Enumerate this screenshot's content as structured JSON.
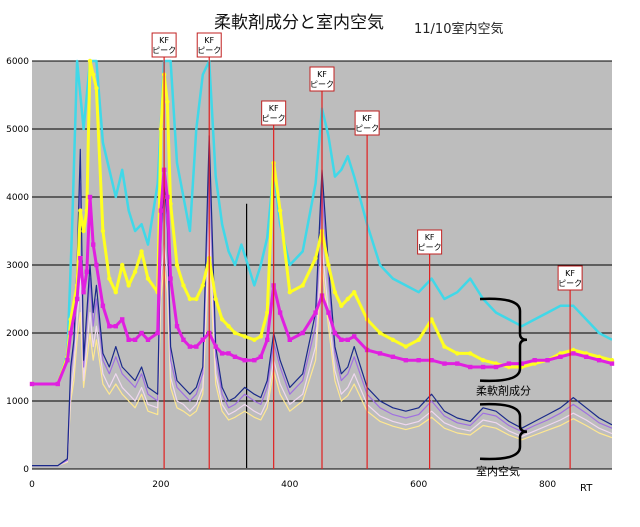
{
  "chart_data": {
    "type": "line",
    "title": "柔軟剤成分と室内空気",
    "subtitle": "11/10室内空気",
    "xlabel": "RT",
    "ylabel": "",
    "xlim": [
      0,
      900
    ],
    "ylim": [
      0,
      6000
    ],
    "x_ticks": [
      0,
      200,
      400,
      600,
      800
    ],
    "y_ticks": [
      0,
      1000,
      2000,
      3000,
      4000,
      5000,
      6000
    ],
    "grid": true,
    "legend": "none",
    "colors": {
      "plot_bg": "#bdbdbd",
      "grid": "#000000",
      "peak_line": "#e02020"
    },
    "kf_peaks": [
      {
        "label": "KF\nピーク",
        "x": 205
      },
      {
        "label": "KF\nピーク",
        "x": 275
      },
      {
        "label": "KF\nピーク",
        "x": 375
      },
      {
        "label": "KF\nピーク",
        "x": 450
      },
      {
        "label": "KF\nピーク",
        "x": 520
      },
      {
        "label": "KF\nピーク",
        "x": 617
      },
      {
        "label": "KF\nピーク",
        "x": 835
      }
    ],
    "marker_line_x": 333,
    "brackets": [
      {
        "label": "柔軟剤成分",
        "y_from": 2500,
        "y_to": 1300
      },
      {
        "label": "室内空気",
        "y_from": 950,
        "y_to": 150
      }
    ],
    "series": [
      {
        "color": "#40d8e8",
        "style": "line",
        "x": [
          0,
          40,
          55,
          62,
          70,
          80,
          90,
          100,
          110,
          130,
          140,
          150,
          160,
          170,
          180,
          195,
          205,
          215,
          225,
          245,
          255,
          265,
          275,
          285,
          295,
          305,
          315,
          325,
          335,
          345,
          355,
          365,
          375,
          385,
          400,
          420,
          440,
          450,
          460,
          470,
          480,
          490,
          500,
          520,
          540,
          560,
          580,
          600,
          620,
          640,
          660,
          680,
          700,
          720,
          740,
          760,
          780,
          800,
          820,
          840,
          860,
          880,
          900
        ],
        "y": [
          1250,
          1250,
          1700,
          3500,
          6000,
          5000,
          6000,
          6000,
          4800,
          4000,
          4400,
          3800,
          3500,
          3600,
          3300,
          4200,
          6000,
          6000,
          4500,
          3500,
          5000,
          5800,
          6000,
          4300,
          3600,
          3200,
          3000,
          3300,
          3000,
          2700,
          3000,
          3400,
          4400,
          3600,
          3000,
          3200,
          4200,
          5300,
          4900,
          4300,
          4400,
          4600,
          4300,
          3600,
          3000,
          2800,
          2700,
          2600,
          2800,
          2500,
          2600,
          2800,
          2500,
          2300,
          2200,
          2100,
          2200,
          2300,
          2400,
          2400,
          2200,
          2000,
          1900
        ]
      },
      {
        "color": "#ffff20",
        "style": "line-dots",
        "x": [
          0,
          40,
          55,
          60,
          70,
          75,
          80,
          85,
          90,
          95,
          100,
          110,
          120,
          130,
          140,
          150,
          160,
          170,
          180,
          195,
          200,
          205,
          210,
          215,
          225,
          235,
          245,
          255,
          265,
          275,
          285,
          295,
          305,
          315,
          330,
          345,
          355,
          365,
          375,
          385,
          400,
          420,
          440,
          450,
          460,
          470,
          480,
          490,
          500,
          520,
          540,
          560,
          580,
          600,
          620,
          640,
          660,
          680,
          700,
          720,
          740,
          760,
          780,
          800,
          820,
          840,
          860,
          880,
          900
        ],
        "y": [
          1250,
          1250,
          1650,
          2200,
          2700,
          3800,
          3500,
          3800,
          6000,
          5800,
          5600,
          3500,
          2800,
          2600,
          3000,
          2700,
          2900,
          3200,
          2800,
          2600,
          5000,
          5800,
          5400,
          3900,
          3000,
          2700,
          2500,
          2500,
          2700,
          3100,
          2500,
          2200,
          2100,
          2000,
          1950,
          1900,
          1950,
          2300,
          4500,
          3800,
          2600,
          2700,
          3100,
          3500,
          3000,
          2600,
          2400,
          2500,
          2600,
          2200,
          2000,
          1900,
          1800,
          1900,
          2200,
          1800,
          1700,
          1700,
          1600,
          1550,
          1500,
          1500,
          1550,
          1600,
          1700,
          1750,
          1700,
          1650,
          1600
        ]
      },
      {
        "color": "#e020e0",
        "style": "line-squares",
        "x": [
          0,
          40,
          55,
          60,
          70,
          75,
          80,
          85,
          90,
          95,
          100,
          110,
          120,
          130,
          140,
          150,
          160,
          170,
          180,
          195,
          200,
          205,
          210,
          215,
          225,
          235,
          245,
          255,
          265,
          275,
          285,
          295,
          305,
          315,
          330,
          345,
          355,
          365,
          375,
          385,
          400,
          420,
          440,
          450,
          460,
          470,
          480,
          490,
          500,
          520,
          540,
          560,
          580,
          600,
          620,
          640,
          660,
          680,
          700,
          720,
          740,
          760,
          780,
          800,
          820,
          840,
          860,
          880,
          900
        ],
        "y": [
          1250,
          1250,
          1600,
          2000,
          2500,
          3100,
          2600,
          2900,
          4000,
          3300,
          3000,
          2400,
          2100,
          2100,
          2200,
          1900,
          1900,
          2000,
          1900,
          2000,
          3800,
          4400,
          4000,
          2800,
          2100,
          1900,
          1800,
          1800,
          1900,
          2000,
          1800,
          1700,
          1700,
          1650,
          1600,
          1600,
          1650,
          1900,
          2700,
          2300,
          1900,
          2000,
          2300,
          2550,
          2300,
          2000,
          1900,
          1900,
          1950,
          1750,
          1700,
          1650,
          1600,
          1600,
          1600,
          1550,
          1550,
          1500,
          1500,
          1500,
          1550,
          1550,
          1600,
          1600,
          1650,
          1700,
          1650,
          1600,
          1550
        ]
      },
      {
        "color": "#1a2a8a",
        "style": "line",
        "x": [
          0,
          40,
          55,
          60,
          65,
          70,
          75,
          80,
          90,
          95,
          100,
          110,
          120,
          130,
          140,
          150,
          160,
          170,
          180,
          195,
          200,
          205,
          210,
          215,
          225,
          235,
          245,
          255,
          265,
          275,
          285,
          295,
          305,
          315,
          330,
          345,
          355,
          365,
          375,
          385,
          400,
          420,
          440,
          450,
          460,
          470,
          480,
          490,
          500,
          520,
          540,
          560,
          580,
          600,
          620,
          640,
          660,
          680,
          700,
          720,
          740,
          760,
          780,
          800,
          820,
          840,
          860,
          880,
          900
        ],
        "y": [
          50,
          50,
          150,
          1500,
          1900,
          3000,
          4700,
          1600,
          3000,
          2300,
          2700,
          1700,
          1500,
          1800,
          1500,
          1400,
          1300,
          1500,
          1200,
          1100,
          3500,
          4200,
          3700,
          1800,
          1300,
          1200,
          1100,
          1200,
          1500,
          4900,
          1800,
          1200,
          1000,
          1050,
          1200,
          1100,
          1050,
          1300,
          2000,
          1600,
          1200,
          1400,
          2300,
          4400,
          3000,
          1800,
          1400,
          1500,
          1800,
          1200,
          1000,
          900,
          850,
          900,
          1100,
          850,
          750,
          700,
          900,
          850,
          700,
          600,
          700,
          800,
          900,
          1050,
          900,
          750,
          650
        ]
      },
      {
        "color": "#a070e0",
        "style": "line",
        "x": [
          0,
          40,
          55,
          60,
          65,
          70,
          75,
          80,
          90,
          95,
          100,
          110,
          120,
          130,
          140,
          150,
          160,
          170,
          180,
          195,
          200,
          205,
          210,
          215,
          225,
          235,
          245,
          255,
          265,
          275,
          285,
          295,
          305,
          315,
          330,
          345,
          355,
          365,
          375,
          385,
          400,
          420,
          440,
          450,
          460,
          470,
          480,
          490,
          500,
          520,
          540,
          560,
          580,
          600,
          620,
          640,
          660,
          680,
          700,
          720,
          740,
          760,
          780,
          800,
          820,
          840,
          860,
          880,
          900
        ],
        "y": [
          50,
          50,
          130,
          1400,
          1800,
          2700,
          4200,
          1500,
          2800,
          2100,
          2500,
          1600,
          1400,
          1650,
          1400,
          1300,
          1200,
          1400,
          1100,
          1000,
          3300,
          4000,
          3500,
          1600,
          1200,
          1100,
          1000,
          1100,
          1400,
          4500,
          1650,
          1100,
          900,
          950,
          1100,
          1000,
          950,
          1200,
          1850,
          1500,
          1100,
          1300,
          2100,
          4100,
          2800,
          1700,
          1300,
          1400,
          1650,
          1100,
          900,
          800,
          750,
          800,
          1000,
          780,
          680,
          640,
          820,
          780,
          640,
          550,
          640,
          720,
          820,
          950,
          820,
          680,
          600
        ]
      },
      {
        "color": "#f0d8f0",
        "style": "line",
        "x": [
          0,
          40,
          55,
          60,
          65,
          70,
          75,
          80,
          90,
          95,
          100,
          110,
          120,
          130,
          140,
          150,
          160,
          170,
          180,
          195,
          200,
          205,
          210,
          215,
          225,
          235,
          245,
          255,
          265,
          275,
          285,
          295,
          305,
          315,
          330,
          345,
          355,
          365,
          375,
          385,
          400,
          420,
          440,
          450,
          460,
          470,
          480,
          490,
          500,
          520,
          540,
          560,
          580,
          600,
          620,
          640,
          660,
          680,
          700,
          720,
          740,
          760,
          780,
          800,
          820,
          840,
          860,
          880,
          900
        ],
        "y": [
          50,
          50,
          110,
          1100,
          1500,
          2200,
          2800,
          1300,
          2300,
          1800,
          2100,
          1400,
          1200,
          1400,
          1200,
          1100,
          1000,
          1200,
          950,
          900,
          2800,
          3300,
          2900,
          1350,
          1000,
          950,
          850,
          950,
          1200,
          3600,
          1400,
          950,
          800,
          850,
          950,
          850,
          800,
          1000,
          1600,
          1250,
          950,
          1100,
          1800,
          3300,
          2300,
          1450,
          1100,
          1200,
          1400,
          950,
          780,
          700,
          650,
          700,
          850,
          680,
          600,
          560,
          720,
          680,
          560,
          480,
          560,
          640,
          720,
          820,
          720,
          600,
          520
        ]
      },
      {
        "color": "#ffe890",
        "style": "line",
        "x": [
          0,
          40,
          55,
          60,
          65,
          70,
          75,
          80,
          90,
          95,
          100,
          110,
          120,
          130,
          140,
          150,
          160,
          170,
          180,
          195,
          200,
          205,
          210,
          215,
          225,
          235,
          245,
          255,
          265,
          275,
          285,
          295,
          305,
          315,
          330,
          345,
          355,
          365,
          375,
          385,
          400,
          420,
          440,
          450,
          460,
          470,
          480,
          490,
          500,
          520,
          540,
          560,
          580,
          600,
          620,
          640,
          660,
          680,
          700,
          720,
          740,
          760,
          780,
          800,
          820,
          840,
          860,
          880,
          900
        ],
        "y": [
          50,
          50,
          100,
          1000,
          1300,
          1900,
          2300,
          1200,
          2000,
          1600,
          1900,
          1250,
          1100,
          1250,
          1100,
          1000,
          900,
          1100,
          850,
          800,
          2500,
          3000,
          2600,
          1200,
          900,
          850,
          780,
          850,
          1100,
          3200,
          1250,
          850,
          720,
          760,
          850,
          760,
          720,
          900,
          1450,
          1100,
          850,
          1000,
          1600,
          3000,
          2100,
          1300,
          1000,
          1080,
          1250,
          850,
          700,
          630,
          580,
          630,
          760,
          600,
          530,
          500,
          640,
          600,
          500,
          430,
          500,
          570,
          640,
          740,
          640,
          530,
          460
        ]
      }
    ]
  }
}
